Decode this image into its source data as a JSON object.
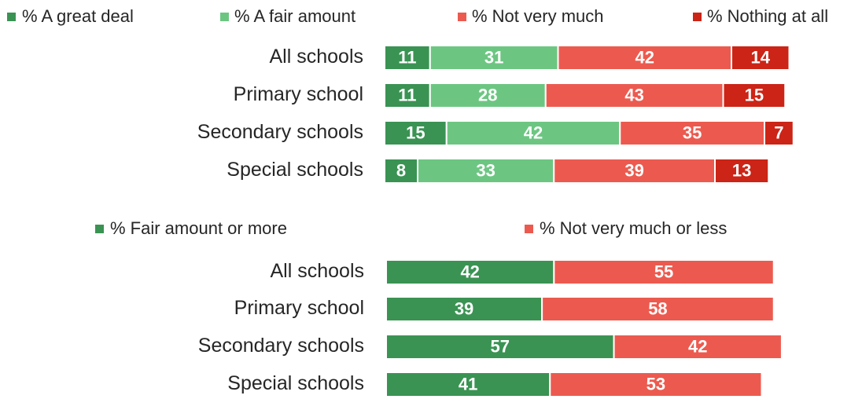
{
  "chart_data": [
    {
      "type": "bar",
      "orientation": "horizontal",
      "stacked": true,
      "categories": [
        "All schools",
        "Primary school",
        "Secondary schools",
        "Special schools"
      ],
      "series": [
        {
          "name": "% A great deal",
          "values": [
            11,
            11,
            15,
            8
          ],
          "color": "#3a9353"
        },
        {
          "name": "% A fair amount",
          "values": [
            31,
            28,
            42,
            33
          ],
          "color": "#6cc682"
        },
        {
          "name": "% Not very much",
          "values": [
            42,
            43,
            35,
            39
          ],
          "color": "#ec5a4f"
        },
        {
          "name": "% Nothing at all",
          "values": [
            14,
            15,
            7,
            13
          ],
          "color": "#cc2416"
        }
      ],
      "legend": "top",
      "grid": false
    },
    {
      "type": "bar",
      "orientation": "horizontal",
      "stacked": true,
      "categories": [
        "All schools",
        "Primary school",
        "Secondary schools",
        "Special schools"
      ],
      "series": [
        {
          "name": "% Fair amount or more",
          "values": [
            42,
            39,
            57,
            41
          ],
          "color": "#3a9353"
        },
        {
          "name": "% Not very much or less",
          "values": [
            55,
            58,
            42,
            53
          ],
          "color": "#ec5a4f"
        }
      ],
      "legend": "top",
      "grid": false
    }
  ]
}
